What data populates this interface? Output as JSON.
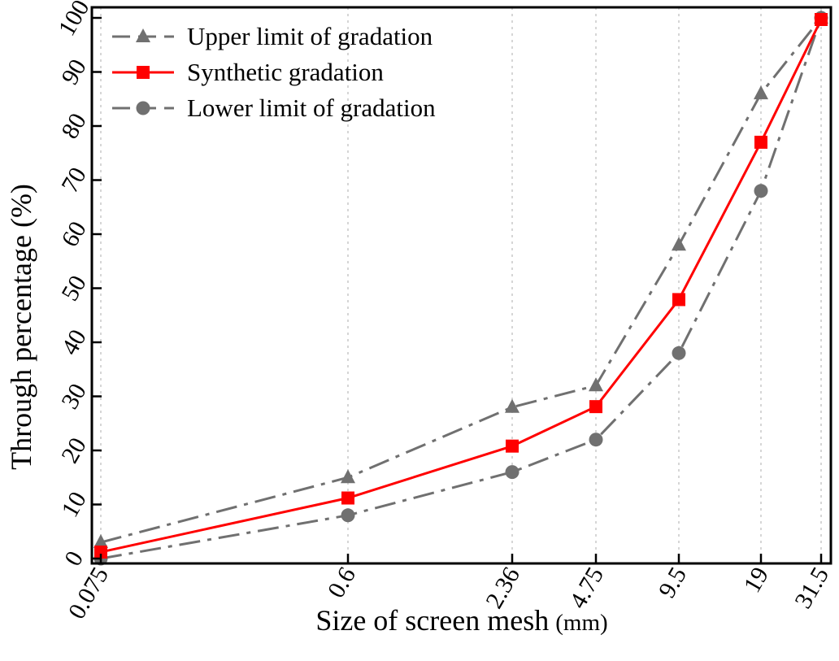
{
  "chart_data": {
    "type": "line",
    "title": "",
    "xlabel": "Size of screen mesh",
    "xlabel_unit": "(mm)",
    "ylabel": "Through percentage (%)",
    "x_scale": "categorical (approximately logarithmic spacing)",
    "categories": [
      "0.075",
      "0.6",
      "2.36",
      "4.75",
      "9.5",
      "19",
      "31.5"
    ],
    "ylim": [
      0,
      100
    ],
    "yticks": [
      "0",
      "10",
      "20",
      "30",
      "40",
      "50",
      "60",
      "70",
      "80",
      "90",
      "100"
    ],
    "grid": true,
    "legend_position": "top-left",
    "series": [
      {
        "name": "Upper limit of gradation",
        "values": [
          3,
          15,
          28,
          32,
          58,
          86,
          100
        ],
        "color": "#707070",
        "line_style": "dash-dot",
        "marker": "triangle"
      },
      {
        "name": "Synthetic gradation",
        "values": [
          1.2,
          11.2,
          20.8,
          28.1,
          47.9,
          77,
          99.7
        ],
        "color": "#ff0000",
        "line_style": "solid",
        "marker": "square"
      },
      {
        "name": "Lower limit of gradation",
        "values": [
          0,
          8,
          16,
          22,
          38,
          68,
          100
        ],
        "color": "#707070",
        "line_style": "dash-dot",
        "marker": "circle"
      }
    ]
  }
}
